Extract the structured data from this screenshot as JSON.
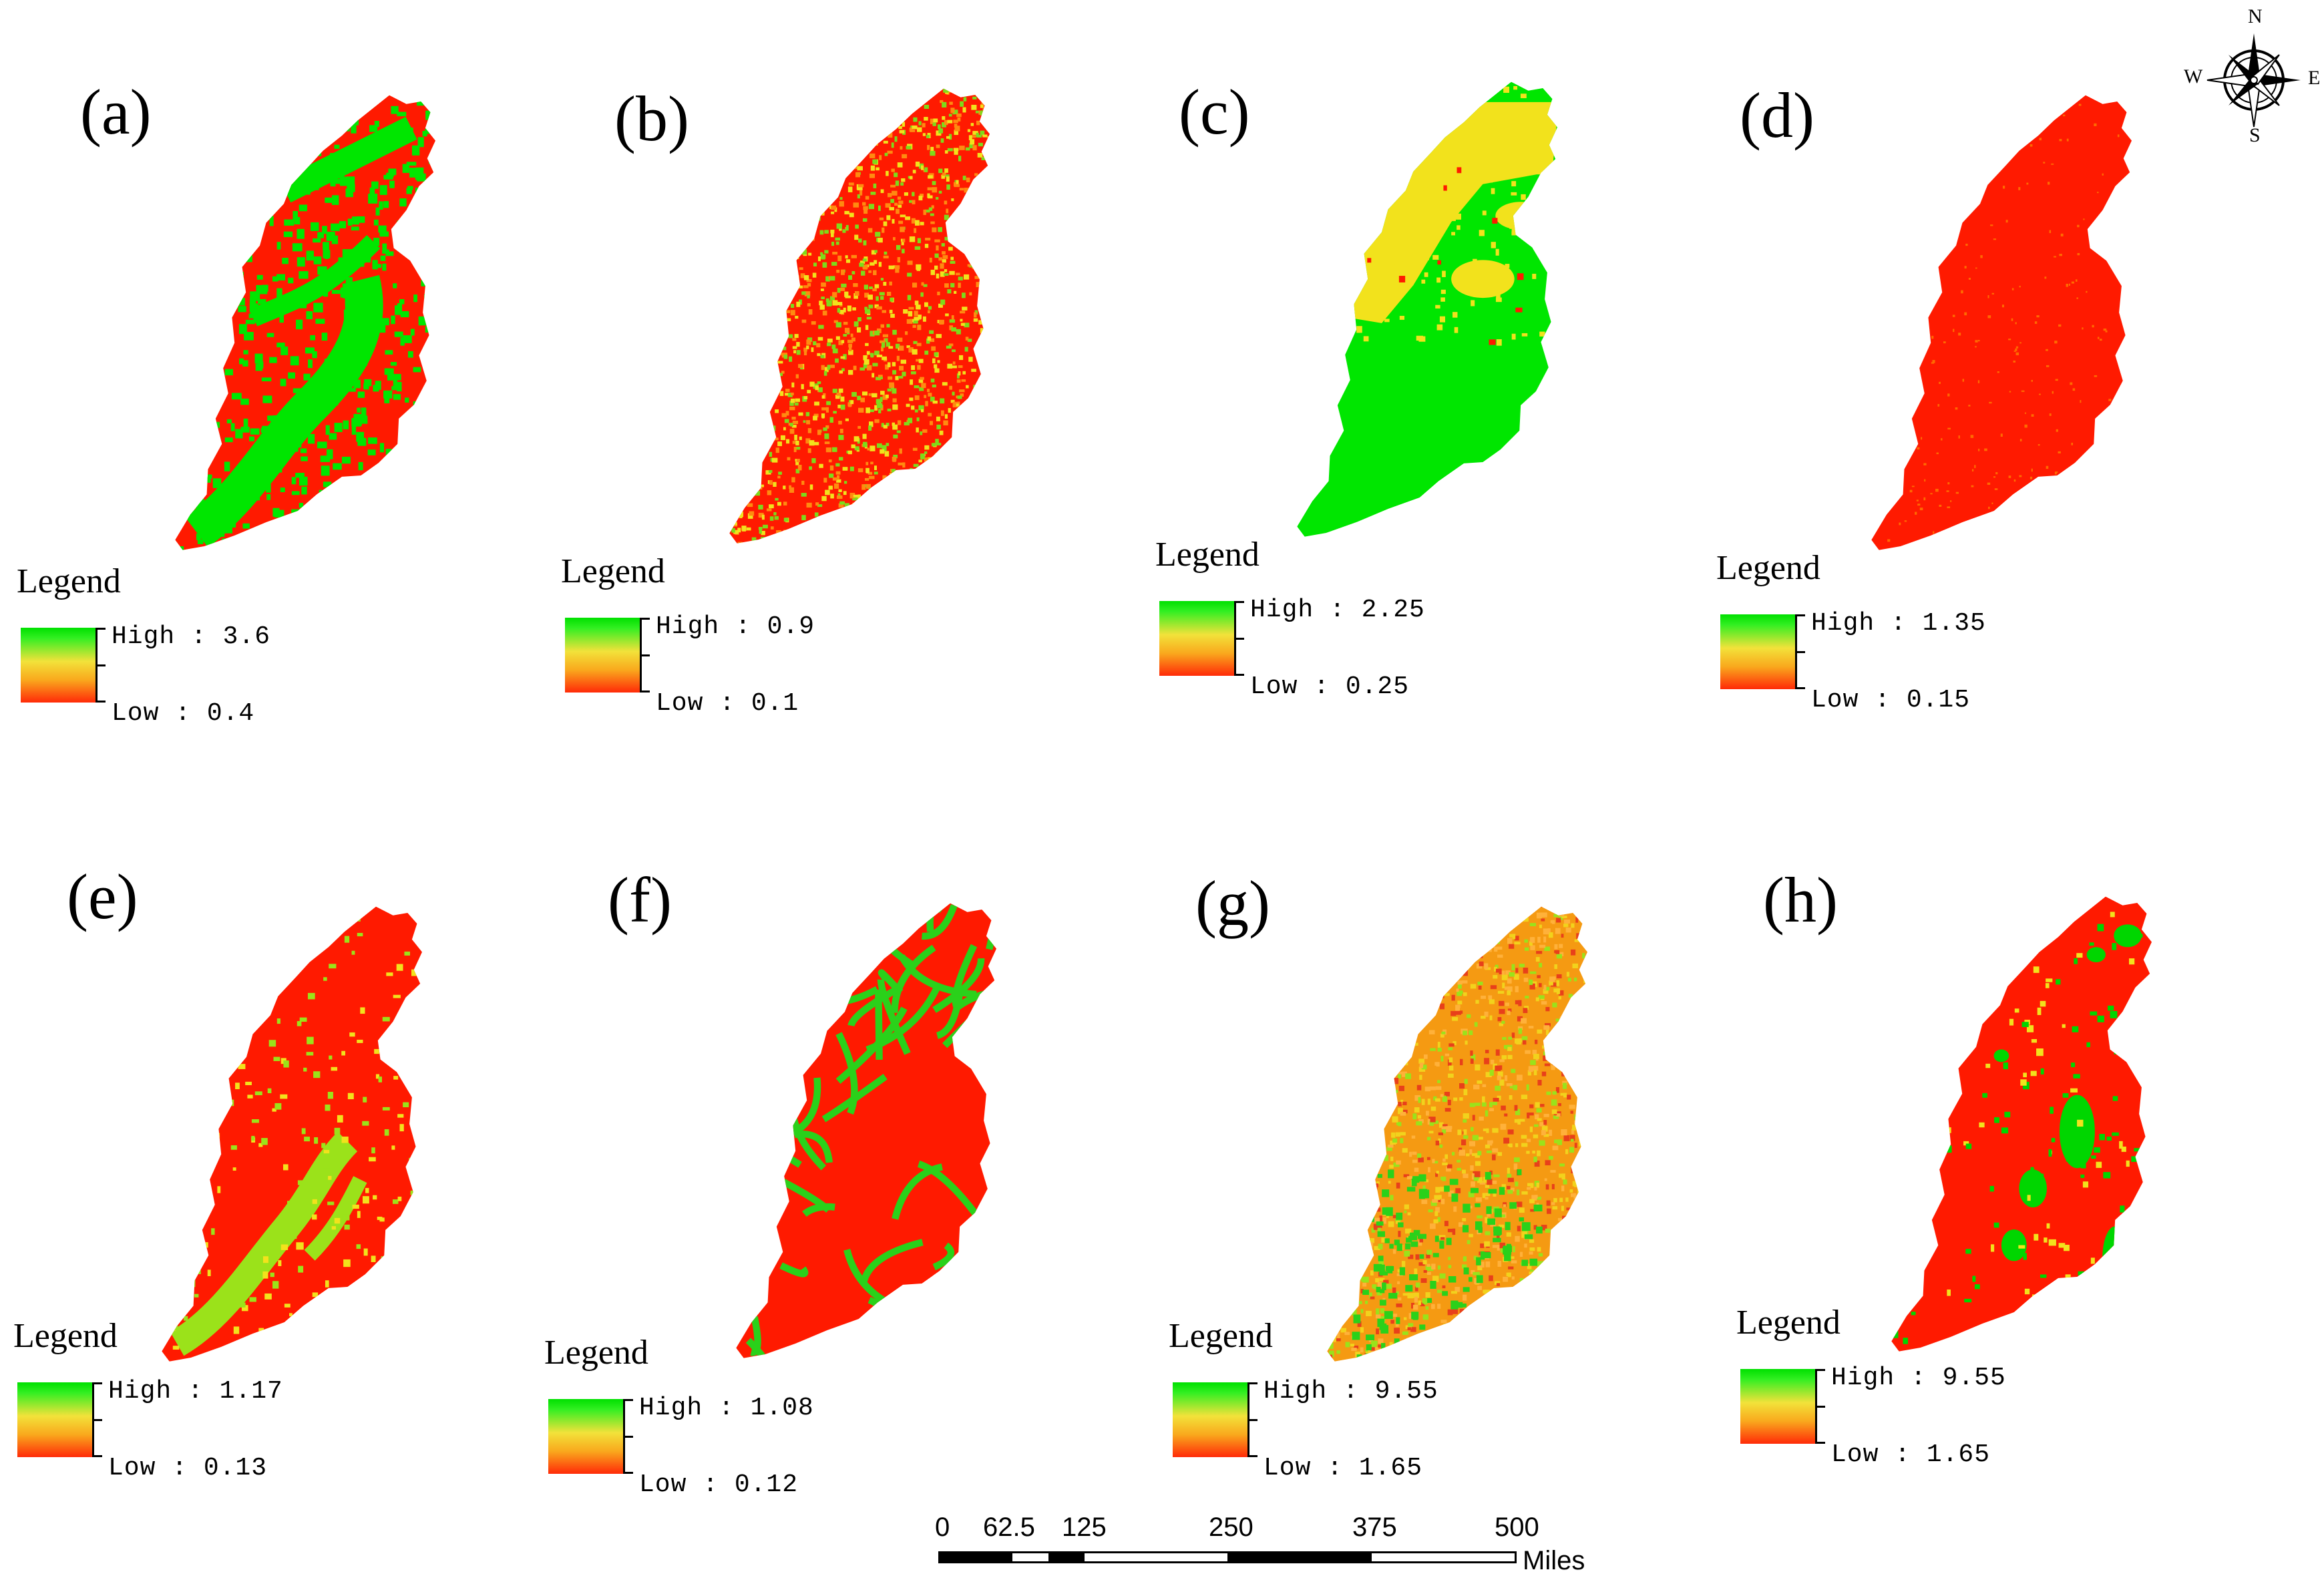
{
  "panels": [
    {
      "label": "(a)",
      "legend_title": "Legend",
      "high_text": "High : 3.6",
      "low_text": "Low : 0.4",
      "dominant_color": "#ff1a00",
      "secondary_color": "#00e600",
      "pattern": "mixed"
    },
    {
      "label": "(b)",
      "legend_title": "Legend",
      "high_text": "High : 0.9",
      "low_text": "Low : 0.1",
      "dominant_color": "#ff1a00",
      "secondary_color": "#7ddb1a",
      "pattern": "speckle"
    },
    {
      "label": "(c)",
      "legend_title": "Legend",
      "high_text": "High : 2.25",
      "low_text": "Low : 0.25",
      "dominant_color": "#00e600",
      "secondary_color": "#f2e21c",
      "pattern": "zones"
    },
    {
      "label": "(d)",
      "legend_title": "Legend",
      "high_text": "High : 1.35",
      "low_text": "Low : 0.15",
      "dominant_color": "#ff1a00",
      "secondary_color": "#ff6a00",
      "pattern": "solid"
    },
    {
      "label": "(e)",
      "legend_title": "Legend",
      "high_text": "High : 1.17",
      "low_text": "Low : 0.13",
      "dominant_color": "#ff1a00",
      "secondary_color": "#9be21a",
      "pattern": "valley"
    },
    {
      "label": "(f)",
      "legend_title": "Legend",
      "high_text": "High : 1.08",
      "low_text": "Low : 0.12",
      "dominant_color": "#ff1a00",
      "secondary_color": "#2ad11a",
      "pattern": "network"
    },
    {
      "label": "(g)",
      "legend_title": "Legend",
      "high_text": "High : 9.55",
      "low_text": "Low : 1.65",
      "dominant_color": "#f59a12",
      "secondary_color": "#e8401a",
      "pattern": "texture"
    },
    {
      "label": "(h)",
      "legend_title": "Legend",
      "high_text": "High : 9.55",
      "low_text": "Low : 1.65",
      "dominant_color": "#ff1a00",
      "secondary_color": "#00d600",
      "pattern": "patches"
    }
  ],
  "scale_bar": {
    "labels": [
      "0",
      "62.5",
      "125",
      "250",
      "375",
      "500"
    ],
    "unit": "Miles"
  },
  "compass": {
    "north": "N",
    "south": "S",
    "east": "E",
    "west": "W"
  }
}
